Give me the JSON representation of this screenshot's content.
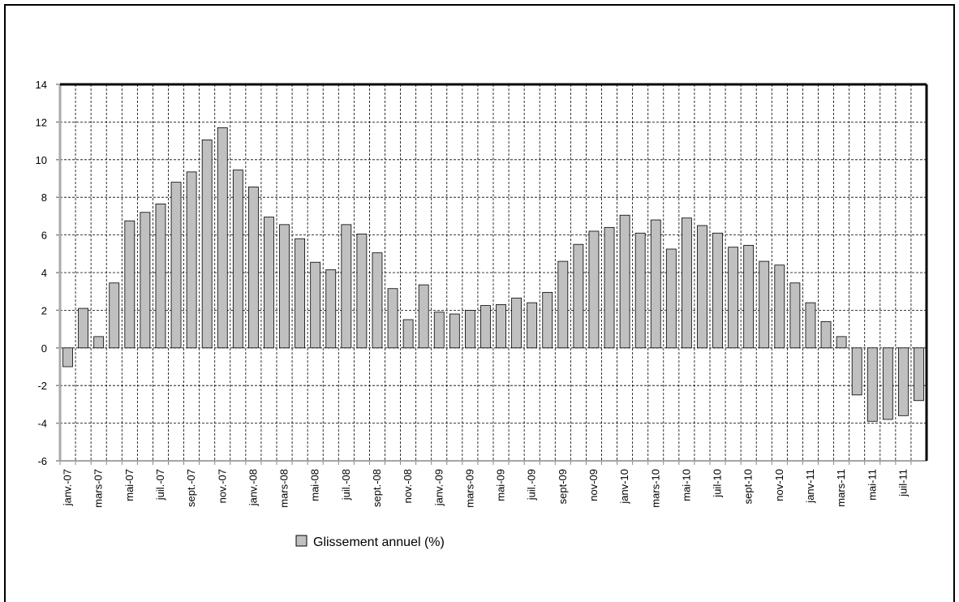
{
  "chart_data": {
    "type": "bar",
    "categories": [
      "janv.-07",
      null,
      "mars-07",
      null,
      "mai-07",
      null,
      "juil.-07",
      null,
      "sept.-07",
      null,
      "nov.-07",
      null,
      "janv.-08",
      null,
      "mars-08",
      null,
      "mai-08",
      null,
      "juil.-08",
      null,
      "sept.-08",
      null,
      "nov.-08",
      null,
      "janv.-09",
      null,
      "mars-09",
      null,
      "mai-09",
      null,
      "juil.-09",
      null,
      "sept-09",
      null,
      "nov-09",
      null,
      "janv-10",
      null,
      "mars-10",
      null,
      "mai-10",
      null,
      "juil-10",
      null,
      "sept-10",
      null,
      "nov-10",
      null,
      "janv-11",
      null,
      "mars-11",
      null,
      "mai-11",
      null,
      "juil-11",
      null
    ],
    "series": [
      {
        "name": "Glissement annuel (%)",
        "color": "#c0c0c0",
        "values": [
          -1.0,
          2.1,
          0.6,
          3.45,
          6.75,
          7.2,
          7.65,
          8.8,
          9.35,
          11.05,
          11.7,
          9.45,
          8.55,
          6.95,
          6.55,
          5.8,
          4.55,
          4.15,
          6.55,
          6.05,
          5.05,
          3.15,
          1.5,
          3.35,
          1.9,
          1.8,
          2.0,
          2.25,
          2.3,
          2.65,
          2.4,
          2.95,
          4.6,
          5.5,
          6.2,
          6.4,
          7.05,
          6.1,
          6.8,
          5.25,
          6.9,
          6.5,
          6.1,
          5.35,
          5.45,
          4.6,
          4.4,
          3.45,
          2.4,
          1.4,
          0.6,
          -2.5,
          -3.9,
          -3.8,
          -3.6,
          -2.8
        ]
      }
    ],
    "ylim": [
      -6,
      14
    ],
    "yticks": [
      -6,
      -4,
      -2,
      0,
      2,
      4,
      6,
      8,
      10,
      12,
      14
    ],
    "grid": true,
    "legend": "bottom"
  }
}
